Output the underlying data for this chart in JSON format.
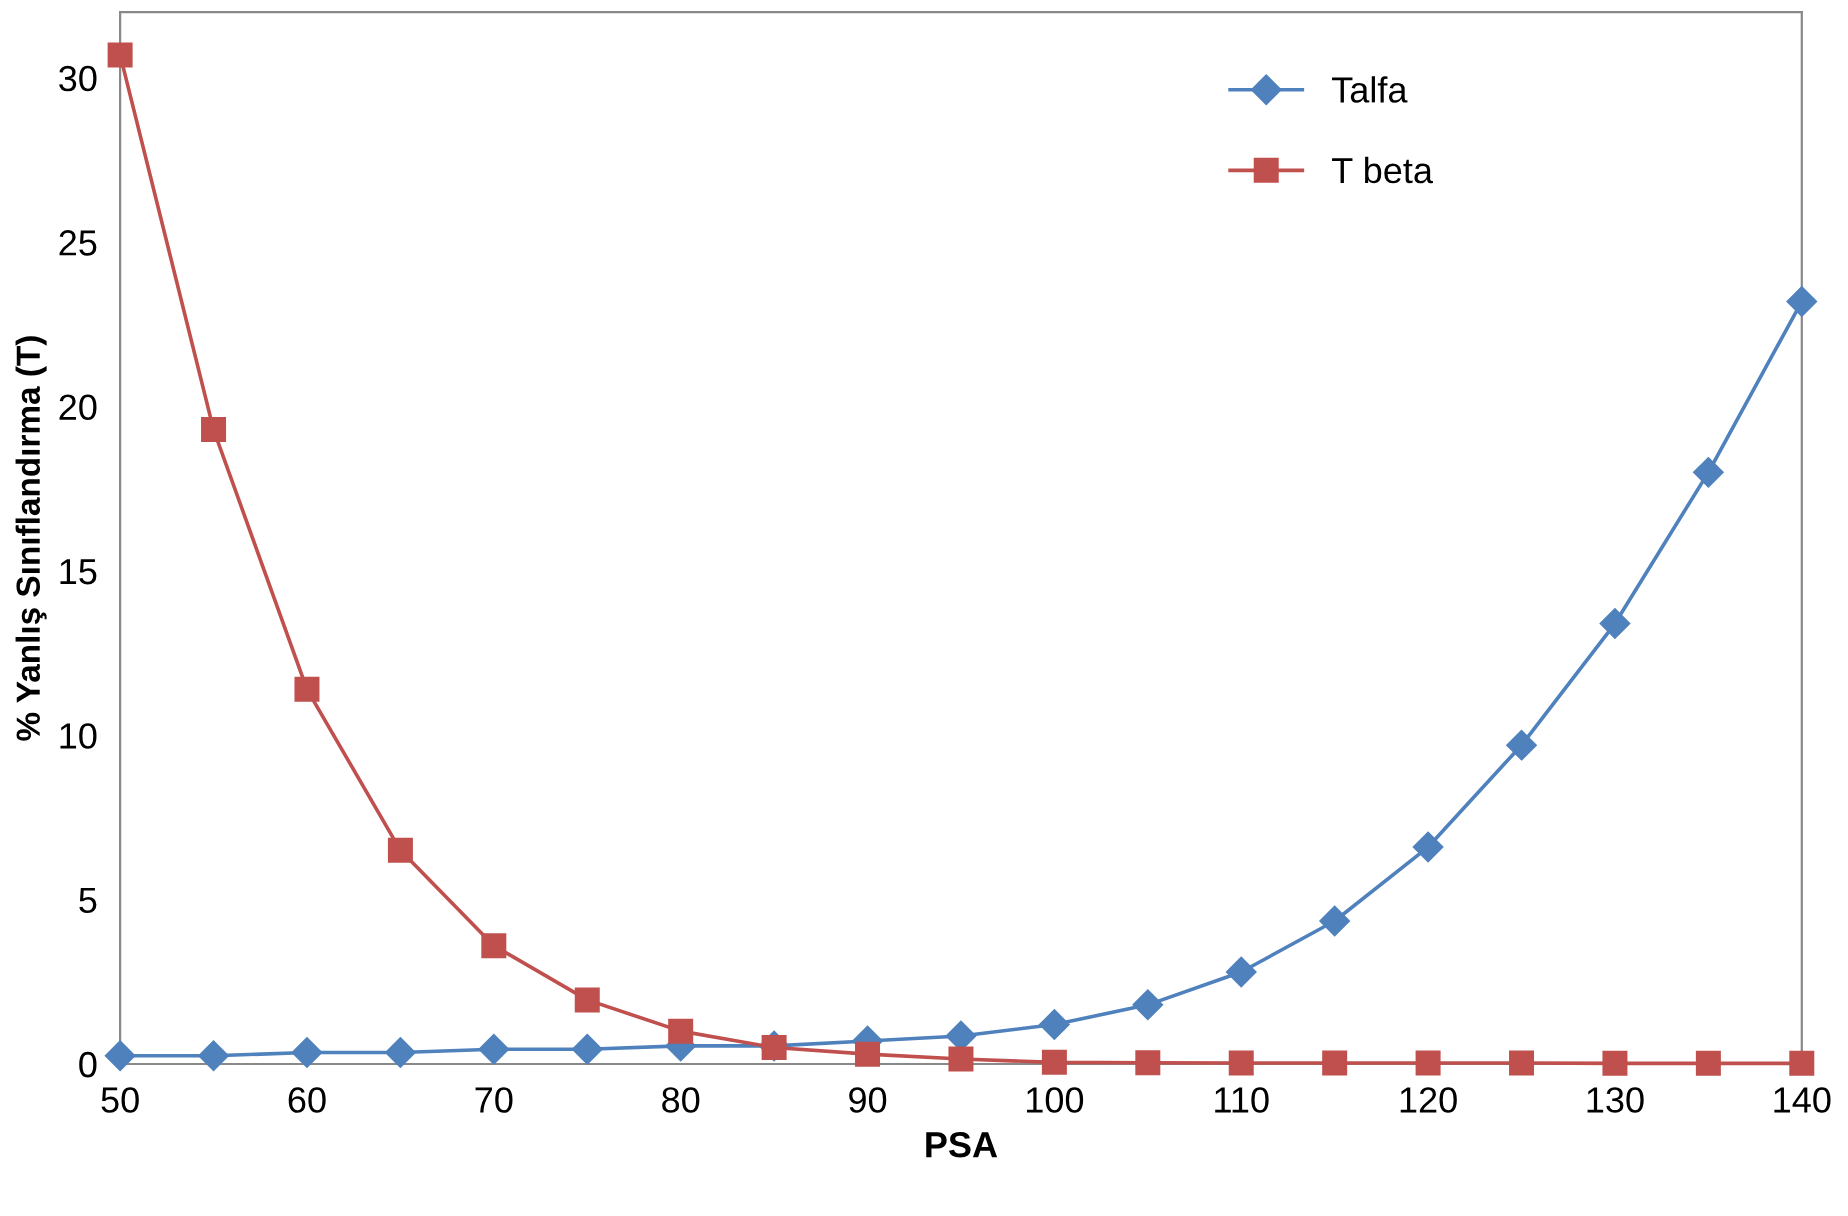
{
  "chart_data": {
    "type": "line",
    "xlabel": "PSA",
    "ylabel": "% Yanlış Sınıflandırma (T)",
    "x": [
      50,
      55,
      60,
      65,
      70,
      75,
      80,
      85,
      90,
      95,
      100,
      105,
      110,
      115,
      120,
      125,
      130,
      135,
      140
    ],
    "series": [
      {
        "name": "Talfa",
        "color": "#4f81bd",
        "marker": "diamond",
        "values": [
          0.25,
          0.25,
          0.35,
          0.35,
          0.45,
          0.45,
          0.55,
          0.55,
          0.7,
          0.85,
          1.2,
          1.8,
          2.8,
          4.35,
          6.6,
          9.7,
          13.4,
          18.0,
          23.2
        ]
      },
      {
        "name": "T beta",
        "color": "#c0504d",
        "marker": "square",
        "values": [
          30.7,
          19.3,
          11.4,
          6.5,
          3.6,
          1.95,
          1.0,
          0.5,
          0.3,
          0.15,
          0.05,
          0.04,
          0.03,
          0.03,
          0.03,
          0.03,
          0.02,
          0.02,
          0.02
        ]
      }
    ],
    "xlim": [
      50,
      140
    ],
    "xticks": [
      50,
      60,
      70,
      80,
      90,
      100,
      110,
      120,
      130,
      140
    ],
    "ylim": [
      0,
      32
    ],
    "yticks": [
      0,
      5,
      10,
      15,
      20,
      25,
      30
    ],
    "grid": false,
    "legend": "top right",
    "line_style": "solid"
  }
}
